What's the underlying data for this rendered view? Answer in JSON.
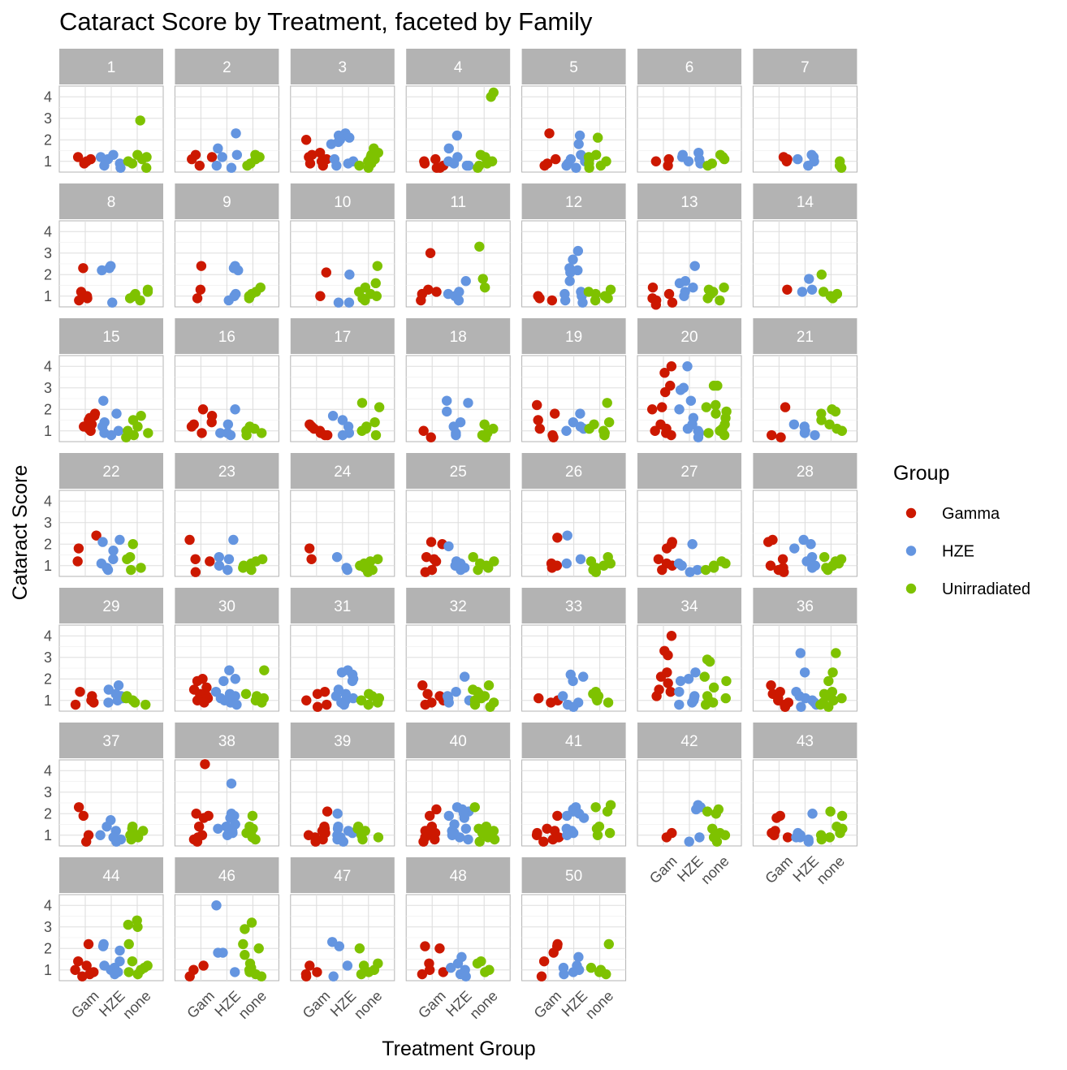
{
  "chart_data": {
    "type": "scatter",
    "title": "Cataract Score by Treatment, faceted by Family",
    "xlabel": "Treatment Group",
    "ylabel": "Cataract Score",
    "categories": [
      "Gam",
      "HZE",
      "none"
    ],
    "y_ticks": [
      1,
      2,
      3,
      4
    ],
    "ylim": [
      0.5,
      4.5
    ],
    "grid": true,
    "jitter": true,
    "legend": {
      "title": "Group",
      "position": "right",
      "entries": [
        {
          "name": "Gamma",
          "color": "#cc1800"
        },
        {
          "name": "HZE",
          "color": "#6495e0"
        },
        {
          "name": "Unirradiated",
          "color": "#7ec200"
        }
      ]
    },
    "facets": [
      {
        "label": "1",
        "Gam": [
          1.2,
          1.1,
          1.0,
          0.9
        ],
        "HZE": [
          1.3,
          1.2,
          1.1,
          0.9,
          0.8,
          0.7
        ],
        "none": [
          2.9,
          1.3,
          1.2,
          1.1,
          1.0,
          0.9,
          0.7
        ]
      },
      {
        "label": "2",
        "Gam": [
          1.3,
          1.2,
          1.1,
          0.8
        ],
        "HZE": [
          2.3,
          1.6,
          1.3,
          1.2,
          0.8,
          0.7
        ],
        "none": [
          1.3,
          1.2,
          1.1,
          0.9,
          0.8
        ]
      },
      {
        "label": "3",
        "Gam": [
          2.0,
          1.4,
          1.3,
          1.2,
          1.1,
          1.0,
          0.9,
          0.8
        ],
        "HZE": [
          2.3,
          2.2,
          2.1,
          2.0,
          1.9,
          1.8,
          1.1,
          1.0,
          0.9,
          0.8
        ],
        "none": [
          1.6,
          1.4,
          1.3,
          1.2,
          1.1,
          1.0,
          0.9,
          0.8,
          0.7
        ]
      },
      {
        "label": "4",
        "Gam": [
          1.1,
          1.0,
          0.9,
          0.8,
          0.7,
          0.7
        ],
        "HZE": [
          2.2,
          1.6,
          1.2,
          1.0,
          0.9,
          0.8,
          0.8
        ],
        "none": [
          4.2,
          4.0,
          1.3,
          1.2,
          1.0,
          0.9,
          0.8,
          0.7
        ]
      },
      {
        "label": "5",
        "Gam": [
          2.3,
          1.1,
          0.9,
          0.8
        ],
        "HZE": [
          2.2,
          1.8,
          1.3,
          1.1,
          1.0,
          0.9,
          0.8,
          0.7
        ],
        "none": [
          2.1,
          1.3,
          1.2,
          1.1,
          1.0,
          0.9,
          0.8,
          0.7
        ]
      },
      {
        "label": "6",
        "Gam": [
          1.1,
          1.0,
          0.8
        ],
        "HZE": [
          1.4,
          1.3,
          1.2,
          1.1,
          1.0,
          0.9
        ],
        "none": [
          1.3,
          1.2,
          1.1,
          0.9,
          0.8
        ]
      },
      {
        "label": "7",
        "Gam": [
          1.2,
          1.1,
          1.0
        ],
        "HZE": [
          1.3,
          1.2,
          1.1,
          1.0,
          0.8
        ],
        "none": [
          1.0,
          0.8,
          0.7
        ]
      },
      {
        "label": "8",
        "Gam": [
          2.3,
          1.2,
          1.0,
          0.9,
          0.8
        ],
        "HZE": [
          2.4,
          2.3,
          2.2,
          0.7
        ],
        "none": [
          1.3,
          1.2,
          1.1,
          1.0,
          0.9,
          0.8
        ]
      },
      {
        "label": "9",
        "Gam": [
          2.4,
          1.3,
          0.9
        ],
        "HZE": [
          2.4,
          2.3,
          2.2,
          1.1,
          1.0,
          0.8
        ],
        "none": [
          1.4,
          1.2,
          1.1,
          1.0,
          0.9
        ]
      },
      {
        "label": "10",
        "Gam": [
          2.1,
          1.0
        ],
        "HZE": [
          2.0,
          0.7,
          0.7
        ],
        "none": [
          2.4,
          1.6,
          1.4,
          1.2,
          1.1,
          1.0,
          0.9,
          0.8
        ]
      },
      {
        "label": "11",
        "Gam": [
          3.0,
          1.3,
          1.2,
          1.1,
          0.8
        ],
        "HZE": [
          1.7,
          1.2,
          1.1,
          1.0,
          0.8
        ],
        "none": [
          3.3,
          1.8,
          1.4
        ]
      },
      {
        "label": "12",
        "Gam": [
          1.0,
          0.9,
          0.8
        ],
        "HZE": [
          3.1,
          2.7,
          2.3,
          2.2,
          2.1,
          1.7,
          1.2,
          1.1,
          1.0,
          0.8,
          0.7
        ],
        "none": [
          1.3,
          1.2,
          1.1,
          1.0,
          0.9,
          0.8
        ]
      },
      {
        "label": "13",
        "Gam": [
          1.4,
          1.1,
          0.9,
          0.8,
          0.7,
          0.6
        ],
        "HZE": [
          2.4,
          1.7,
          1.6,
          1.4,
          1.2,
          1.0
        ],
        "none": [
          1.4,
          1.3,
          1.2,
          1.1,
          0.9,
          0.8
        ]
      },
      {
        "label": "14",
        "Gam": [
          1.3
        ],
        "HZE": [
          1.8,
          1.3,
          1.2
        ],
        "none": [
          2.0,
          1.2,
          1.1,
          1.0,
          0.9
        ]
      },
      {
        "label": "15",
        "Gam": [
          1.8,
          1.7,
          1.6,
          1.5,
          1.3,
          1.2,
          1.1,
          1.0
        ],
        "HZE": [
          2.4,
          1.8,
          1.4,
          1.2,
          1.0,
          0.9,
          0.8
        ],
        "none": [
          1.7,
          1.5,
          1.2,
          1.0,
          0.9,
          0.8,
          0.7
        ]
      },
      {
        "label": "16",
        "Gam": [
          2.0,
          1.7,
          1.4,
          1.3,
          1.2,
          0.9
        ],
        "HZE": [
          2.0,
          1.3,
          0.9,
          0.9,
          0.8
        ],
        "none": [
          1.2,
          1.1,
          1.0,
          0.9,
          0.8
        ]
      },
      {
        "label": "17",
        "Gam": [
          1.3,
          1.2,
          1.1,
          1.0,
          0.9,
          0.8,
          0.8
        ],
        "HZE": [
          1.7,
          1.5,
          1.2,
          0.9,
          0.8
        ],
        "none": [
          2.3,
          2.1,
          1.4,
          1.2,
          1.1,
          1.0,
          0.8
        ]
      },
      {
        "label": "18",
        "Gam": [
          1.0,
          0.7
        ],
        "HZE": [
          2.4,
          2.3,
          1.9,
          1.4,
          1.2,
          0.9,
          0.8
        ],
        "none": [
          1.3,
          1.1,
          0.9,
          0.8,
          0.7
        ]
      },
      {
        "label": "19",
        "Gam": [
          2.2,
          1.8,
          1.5,
          1.1,
          0.8,
          0.7
        ],
        "HZE": [
          1.8,
          1.4,
          1.2,
          1.1,
          1.0
        ],
        "none": [
          2.3,
          1.4,
          1.3,
          1.1,
          1.0,
          0.9,
          0.8
        ]
      },
      {
        "label": "20",
        "Gam": [
          4.0,
          3.7,
          3.1,
          2.8,
          2.1,
          2.0,
          1.3,
          1.1,
          1.0,
          0.9,
          0.8
        ],
        "HZE": [
          4.0,
          3.0,
          2.9,
          2.4,
          2.0,
          1.6,
          1.3,
          1.1,
          1.0,
          0.9,
          0.7
        ],
        "none": [
          3.1,
          3.1,
          2.2,
          2.1,
          1.9,
          1.8,
          1.6,
          1.3,
          1.1,
          1.0,
          0.9,
          0.8
        ]
      },
      {
        "label": "21",
        "Gam": [
          2.1,
          0.8,
          0.7
        ],
        "HZE": [
          1.3,
          1.2,
          1.0,
          0.9,
          0.8
        ],
        "none": [
          2.0,
          1.9,
          1.8,
          1.5,
          1.3,
          1.1,
          1.0
        ]
      },
      {
        "label": "22",
        "Gam": [
          2.4,
          1.8,
          1.2
        ],
        "HZE": [
          2.2,
          2.1,
          1.7,
          1.3,
          1.1,
          0.9,
          0.8
        ],
        "none": [
          2.0,
          1.4,
          1.3,
          0.9,
          0.8
        ]
      },
      {
        "label": "23",
        "Gam": [
          2.2,
          1.3,
          1.2,
          0.7
        ],
        "HZE": [
          2.2,
          1.4,
          1.3,
          1.0,
          0.8
        ],
        "none": [
          1.3,
          1.2,
          1.1,
          1.0,
          0.9,
          0.8
        ]
      },
      {
        "label": "24",
        "Gam": [
          1.8,
          1.3
        ],
        "HZE": [
          1.4,
          0.9,
          0.8
        ],
        "none": [
          1.3,
          1.2,
          1.1,
          1.0,
          0.9,
          0.8,
          0.7
        ]
      },
      {
        "label": "25",
        "Gam": [
          2.1,
          2.0,
          1.4,
          1.3,
          1.2,
          0.8,
          0.7
        ],
        "HZE": [
          1.9,
          1.2,
          1.1,
          1.0,
          0.9,
          0.8
        ],
        "none": [
          1.4,
          1.2,
          1.1,
          1.0,
          0.9,
          0.8
        ]
      },
      {
        "label": "26",
        "Gam": [
          2.3,
          1.1,
          1.0,
          0.9
        ],
        "HZE": [
          2.4,
          1.3,
          1.1
        ],
        "none": [
          1.4,
          1.2,
          1.1,
          1.0,
          0.9,
          0.8,
          0.7
        ]
      },
      {
        "label": "27",
        "Gam": [
          2.1,
          2.0,
          1.8,
          1.3,
          1.1,
          1.0,
          0.8
        ],
        "HZE": [
          2.0,
          1.1,
          1.0,
          0.8,
          0.7
        ],
        "none": [
          1.2,
          1.1,
          1.0,
          0.9,
          0.8
        ]
      },
      {
        "label": "28",
        "Gam": [
          2.2,
          2.1,
          1.3,
          1.0,
          0.9,
          0.8,
          0.7
        ],
        "HZE": [
          2.2,
          2.0,
          1.8,
          1.4,
          1.2,
          1.0,
          0.9
        ],
        "none": [
          1.4,
          1.3,
          1.2,
          1.1,
          1.0,
          0.9,
          0.8
        ]
      },
      {
        "label": "29",
        "Gam": [
          1.4,
          1.2,
          1.0,
          0.9,
          0.8
        ],
        "HZE": [
          1.7,
          1.5,
          1.3,
          1.2,
          1.1,
          1.0,
          0.9
        ],
        "none": [
          1.2,
          1.1,
          1.0,
          0.9,
          0.8
        ]
      },
      {
        "label": "30",
        "Gam": [
          2.0,
          1.9,
          1.6,
          1.5,
          1.3,
          1.2,
          1.1,
          1.0,
          0.9
        ],
        "HZE": [
          2.4,
          2.0,
          1.9,
          1.4,
          1.3,
          1.2,
          1.1,
          1.0,
          0.9,
          0.8
        ],
        "none": [
          2.4,
          1.3,
          1.2,
          1.1,
          1.0,
          0.9
        ]
      },
      {
        "label": "31",
        "Gam": [
          1.4,
          1.3,
          1.0,
          0.8,
          0.7
        ],
        "HZE": [
          2.4,
          2.3,
          2.2,
          2.0,
          1.9,
          1.5,
          1.3,
          1.2,
          1.1,
          1.0,
          0.9,
          0.8
        ],
        "none": [
          1.3,
          1.2,
          1.1,
          1.0,
          0.9,
          0.8
        ]
      },
      {
        "label": "32",
        "Gam": [
          1.7,
          1.3,
          1.2,
          1.0,
          0.9,
          0.8
        ],
        "HZE": [
          2.1,
          1.4,
          1.2,
          1.1,
          1.0,
          0.9
        ],
        "none": [
          1.7,
          1.5,
          1.4,
          1.3,
          1.2,
          1.1,
          1.0,
          0.9,
          0.8,
          0.7
        ]
      },
      {
        "label": "33",
        "Gam": [
          1.1,
          1.0,
          0.9
        ],
        "HZE": [
          2.2,
          2.1,
          1.9,
          1.2,
          0.9,
          0.8,
          0.7
        ],
        "none": [
          1.4,
          1.3,
          1.2,
          1.1,
          1.0,
          0.9
        ]
      },
      {
        "label": "34",
        "Gam": [
          4.0,
          3.3,
          3.1,
          2.3,
          2.1,
          1.8,
          1.5,
          1.4,
          1.2
        ],
        "HZE": [
          2.3,
          2.0,
          1.9,
          1.4,
          1.2,
          1.1,
          1.0,
          0.9,
          0.8
        ],
        "none": [
          2.9,
          2.8,
          2.1,
          1.9,
          1.6,
          1.2,
          1.1,
          1.0,
          0.9,
          0.8
        ]
      },
      {
        "label": "36",
        "Gam": [
          1.7,
          1.4,
          1.3,
          1.1,
          1.0,
          0.9,
          0.8,
          0.7
        ],
        "HZE": [
          3.2,
          2.3,
          1.4,
          1.2,
          1.1,
          1.0,
          0.9,
          0.8,
          0.7
        ],
        "none": [
          3.2,
          2.3,
          1.9,
          1.4,
          1.3,
          1.2,
          1.1,
          1.0,
          0.9,
          0.8,
          0.7
        ]
      },
      {
        "label": "37",
        "Gam": [
          2.3,
          1.9,
          1.0,
          0.7
        ],
        "HZE": [
          1.7,
          1.4,
          1.2,
          1.0,
          0.9,
          0.8,
          0.7
        ],
        "none": [
          1.4,
          1.3,
          1.2,
          1.1,
          1.0,
          0.9,
          0.8
        ]
      },
      {
        "label": "38",
        "Gam": [
          4.3,
          2.0,
          1.9,
          1.8,
          1.4,
          1.0,
          0.9,
          0.8,
          0.7
        ],
        "HZE": [
          3.4,
          2.0,
          1.9,
          1.8,
          1.5,
          1.4,
          1.3,
          1.2,
          1.1,
          1.0
        ],
        "none": [
          1.9,
          1.4,
          1.3,
          1.2,
          1.1,
          0.9,
          0.8
        ]
      },
      {
        "label": "39",
        "Gam": [
          2.1,
          1.4,
          1.3,
          1.2,
          1.1,
          1.0,
          0.9,
          0.8,
          0.7
        ],
        "HZE": [
          2.0,
          1.4,
          1.3,
          1.2,
          1.1,
          1.0,
          0.9,
          0.8,
          0.7
        ],
        "none": [
          1.4,
          1.3,
          1.2,
          1.0,
          0.9,
          0.8
        ]
      },
      {
        "label": "40",
        "Gam": [
          2.2,
          1.9,
          1.4,
          1.3,
          1.2,
          1.1,
          1.0,
          0.9,
          0.8,
          0.7
        ],
        "HZE": [
          2.3,
          2.2,
          2.1,
          2.0,
          1.9,
          1.8,
          1.5,
          1.3,
          1.2,
          1.1,
          1.0,
          0.9,
          0.8
        ],
        "none": [
          2.3,
          1.4,
          1.3,
          1.2,
          1.1,
          1.0,
          0.9,
          0.8,
          0.7
        ]
      },
      {
        "label": "41",
        "Gam": [
          1.9,
          1.3,
          1.2,
          1.1,
          1.0,
          0.9,
          0.8,
          0.7
        ],
        "HZE": [
          2.3,
          2.2,
          2.1,
          2.0,
          1.9,
          1.8,
          1.3,
          1.2,
          1.1,
          1.0
        ],
        "none": [
          2.4,
          2.3,
          2.1,
          1.4,
          1.3,
          1.1,
          1.0
        ]
      },
      {
        "label": "42",
        "Gam": [
          1.1,
          0.9
        ],
        "HZE": [
          2.4,
          2.3,
          2.2,
          0.9,
          0.7
        ],
        "none": [
          2.2,
          2.1,
          2.0,
          1.3,
          1.1,
          1.0,
          0.9,
          0.7
        ]
      },
      {
        "label": "43",
        "Gam": [
          1.9,
          1.8,
          1.2,
          1.1,
          1.0,
          0.9
        ],
        "HZE": [
          2.0,
          1.1,
          1.0,
          0.9,
          0.9,
          0.8,
          0.7
        ],
        "none": [
          2.1,
          1.9,
          1.4,
          1.3,
          1.1,
          1.0,
          0.9,
          0.8
        ]
      },
      {
        "label": "44",
        "Gam": [
          2.2,
          1.4,
          1.2,
          1.0,
          0.9,
          0.8,
          0.7
        ],
        "HZE": [
          2.2,
          2.1,
          1.9,
          1.4,
          1.2,
          1.1,
          1.0,
          0.9,
          0.8
        ],
        "none": [
          3.3,
          3.1,
          3.0,
          2.2,
          1.4,
          1.2,
          1.1,
          1.0,
          0.9,
          0.8
        ]
      },
      {
        "label": "46",
        "Gam": [
          1.2,
          1.0,
          0.7
        ],
        "HZE": [
          4.0,
          1.8,
          1.8,
          0.9
        ],
        "none": [
          3.2,
          2.9,
          2.2,
          2.0,
          1.7,
          1.3,
          1.1,
          1.0,
          0.9,
          0.8,
          0.7
        ]
      },
      {
        "label": "47",
        "Gam": [
          1.2,
          0.9,
          0.8,
          0.7
        ],
        "HZE": [
          2.3,
          2.1,
          1.2,
          0.7
        ],
        "none": [
          2.0,
          1.3,
          1.2,
          1.0,
          0.9,
          0.8
        ]
      },
      {
        "label": "48",
        "Gam": [
          2.1,
          2.0,
          1.3,
          1.0,
          0.9,
          0.8
        ],
        "HZE": [
          1.6,
          1.3,
          1.1,
          1.0,
          0.9,
          0.8,
          0.7
        ],
        "none": [
          1.4,
          1.3,
          1.0,
          0.9
        ]
      },
      {
        "label": "50",
        "Gam": [
          2.2,
          2.1,
          1.8,
          1.4,
          0.7
        ],
        "HZE": [
          1.6,
          1.2,
          1.1,
          1.0,
          0.9,
          0.8
        ],
        "none": [
          2.2,
          1.1,
          1.0,
          0.9,
          0.8
        ]
      }
    ]
  }
}
